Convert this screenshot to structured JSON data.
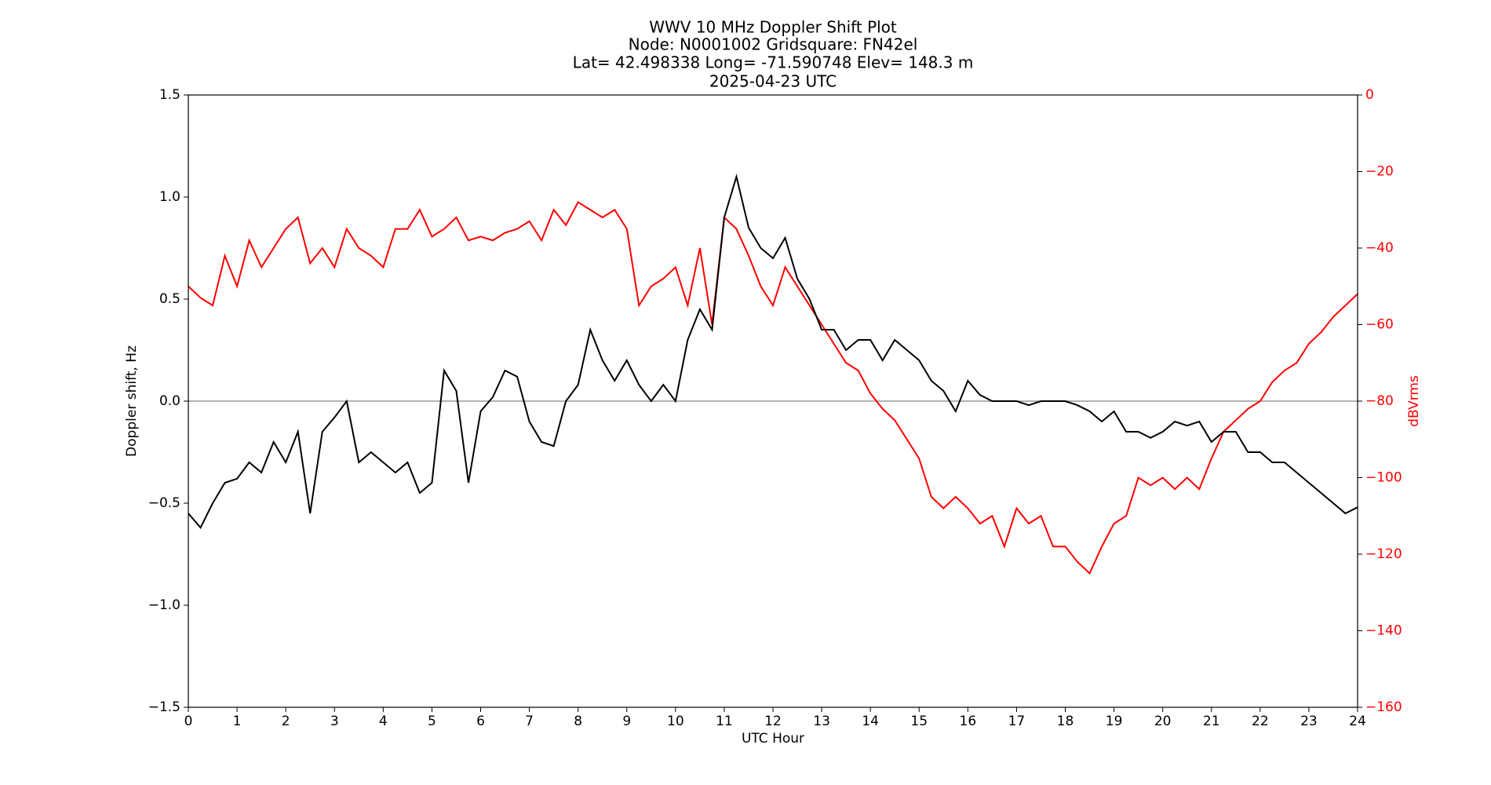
{
  "chart_data": {
    "type": "line",
    "title": [
      "WWV 10 MHz Doppler Shift Plot",
      "Node:  N0001002     Gridsquare:  FN42el",
      "Lat= 42.498338    Long= -71.590748    Elev= 148.3 m",
      "2025-04-23  UTC"
    ],
    "xlabel": "UTC Hour",
    "ylabel": "Doppler shift, Hz",
    "y2label": "dBVrms",
    "xlim": [
      0,
      24
    ],
    "xticks": [
      0,
      1,
      2,
      3,
      4,
      5,
      6,
      7,
      8,
      9,
      10,
      11,
      12,
      13,
      14,
      15,
      16,
      17,
      18,
      19,
      20,
      21,
      22,
      23,
      24
    ],
    "ylim": [
      -1.5,
      1.5
    ],
    "yticks": [
      {
        "value": -1.5,
        "label": "−1.5"
      },
      {
        "value": -1.0,
        "label": "−1.0"
      },
      {
        "value": -0.5,
        "label": "−0.5"
      },
      {
        "value": 0,
        "label": "0.0"
      },
      0.5,
      {
        "value": 1.0,
        "label": "1.0"
      },
      1.5
    ],
    "y2lim": [
      -160,
      0
    ],
    "y2ticks": [
      {
        "value": -160,
        "label": "−160"
      },
      {
        "value": -140,
        "label": "−140"
      },
      {
        "value": -120,
        "label": "−120"
      },
      {
        "value": -100,
        "label": "−100"
      },
      {
        "value": -80,
        "label": "−80"
      },
      {
        "value": -60,
        "label": "−60"
      },
      {
        "value": -40,
        "label": "−40"
      },
      {
        "value": -20,
        "label": "−20"
      },
      0
    ],
    "hline": 0,
    "x": [
      0,
      0.25,
      0.5,
      0.75,
      1,
      1.25,
      1.5,
      1.75,
      2,
      2.25,
      2.5,
      2.75,
      3,
      3.25,
      3.5,
      3.75,
      4,
      4.25,
      4.5,
      4.75,
      5,
      5.25,
      5.5,
      5.75,
      6,
      6.25,
      6.5,
      6.75,
      7,
      7.25,
      7.5,
      7.75,
      8,
      8.25,
      8.5,
      8.75,
      9,
      9.25,
      9.5,
      9.75,
      10,
      10.25,
      10.5,
      10.75,
      11,
      11.25,
      11.5,
      11.75,
      12,
      12.25,
      12.5,
      12.75,
      13,
      13.25,
      13.5,
      13.75,
      14,
      14.25,
      14.5,
      14.75,
      15,
      15.25,
      15.5,
      15.75,
      16,
      16.25,
      16.5,
      16.75,
      17,
      17.25,
      17.5,
      17.75,
      18,
      18.25,
      18.5,
      18.75,
      19,
      19.25,
      19.5,
      19.75,
      20,
      20.25,
      20.5,
      20.75,
      21,
      21.25,
      21.5,
      21.75,
      22,
      22.25,
      22.5,
      22.75,
      23,
      23.25,
      23.5,
      23.75,
      24
    ],
    "series": [
      {
        "axis": "y",
        "color": "#000000",
        "values": [
          -0.55,
          -0.62,
          -0.5,
          -0.4,
          -0.38,
          -0.3,
          -0.35,
          -0.2,
          -0.3,
          -0.15,
          -0.55,
          -0.15,
          -0.08,
          0.0,
          -0.3,
          -0.25,
          -0.3,
          -0.35,
          -0.3,
          -0.45,
          -0.4,
          0.15,
          0.05,
          -0.4,
          -0.05,
          0.02,
          0.15,
          0.12,
          -0.1,
          -0.2,
          -0.22,
          0.0,
          0.08,
          0.35,
          0.2,
          0.1,
          0.2,
          0.08,
          0.0,
          0.08,
          0.0,
          0.3,
          0.45,
          0.35,
          0.9,
          1.1,
          0.85,
          0.75,
          0.7,
          0.8,
          0.6,
          0.5,
          0.35,
          0.35,
          0.25,
          0.3,
          0.3,
          0.2,
          0.3,
          0.25,
          0.2,
          0.1,
          0.05,
          -0.05,
          0.1,
          0.03,
          0.0,
          0.0,
          0.0,
          -0.02,
          0.0,
          0.0,
          0.0,
          -0.02,
          -0.05,
          -0.1,
          -0.05,
          -0.15,
          -0.15,
          -0.18,
          -0.15,
          -0.1,
          -0.12,
          -0.1,
          -0.2,
          -0.15,
          -0.15,
          -0.25,
          -0.25,
          -0.3,
          -0.3,
          -0.35,
          -0.4,
          -0.45,
          -0.5,
          -0.55,
          -0.52
        ]
      },
      {
        "axis": "y2",
        "color": "#ff0000",
        "values": [
          -50,
          -53,
          -55,
          -42,
          -50,
          -38,
          -45,
          -40,
          -35,
          -32,
          -44,
          -40,
          -45,
          -35,
          -40,
          -42,
          -45,
          -35,
          -35,
          -30,
          -37,
          -35,
          -32,
          -38,
          -37,
          -38,
          -36,
          -35,
          -33,
          -38,
          -30,
          -34,
          -28,
          -30,
          -32,
          -30,
          -35,
          -55,
          -50,
          -48,
          -45,
          -55,
          -40,
          -60,
          -32,
          -35,
          -42,
          -50,
          -55,
          -45,
          -50,
          -55,
          -60,
          -65,
          -70,
          -72,
          -78,
          -82,
          -85,
          -90,
          -95,
          -105,
          -108,
          -105,
          -108,
          -112,
          -110,
          -118,
          -108,
          -112,
          -110,
          -118,
          -118,
          -122,
          -125,
          -118,
          -112,
          -110,
          -100,
          -102,
          -100,
          -103,
          -100,
          -103,
          -95,
          -88,
          -85,
          -82,
          -80,
          -75,
          -72,
          -70,
          -65,
          -62,
          -58,
          -55,
          -52
        ]
      }
    ]
  }
}
